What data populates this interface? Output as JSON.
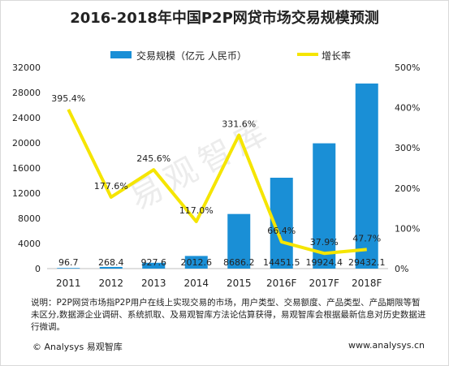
{
  "chart_data": {
    "type": "bar+line",
    "title": "2016-2018年中国P2P网贷市场交易规模预测",
    "categories": [
      "2011",
      "2012",
      "2013",
      "2014",
      "2015",
      "2016F",
      "2017F",
      "2018F"
    ],
    "series": [
      {
        "name": "交易规模（亿元 人民币）",
        "type": "bar",
        "axis": "left",
        "values": [
          96.7,
          268.4,
          927.6,
          2012.6,
          8686.2,
          14451.5,
          19924.4,
          29432.1
        ],
        "labels": [
          "96.7",
          "268.4",
          "927.6",
          "2012.6",
          "8686.2",
          "14451.5",
          "19924.4",
          "29432.1"
        ]
      },
      {
        "name": "增长率",
        "type": "line",
        "axis": "right",
        "values": [
          395.4,
          177.6,
          245.6,
          117.0,
          331.6,
          66.4,
          37.9,
          47.7
        ],
        "labels": [
          "395.4%",
          "177.6%",
          "245.6%",
          "117.0%",
          "331.6%",
          "66.4%",
          "37.9%",
          "47.7%"
        ]
      }
    ],
    "y_left": {
      "ticks": [
        "0",
        "4000",
        "8000",
        "12000",
        "16000",
        "20000",
        "24000",
        "28000",
        "32000"
      ],
      "lim": [
        0,
        32000
      ]
    },
    "y_right": {
      "ticks": [
        "0%",
        "100%",
        "200%",
        "300%",
        "400%",
        "500%"
      ],
      "lim": [
        0,
        500
      ]
    },
    "legend_position": "top",
    "grid": false,
    "colors": {
      "bar": "#1a8fd6",
      "line": "#f5e500"
    }
  },
  "watermark": "易观智库",
  "note": "说明：P2P网贷市场指P2P用户在线上实现交易的市场，用户类型、交易额度、产品类型、产品期限等暂未区分,数据源企业调研、系统抓取、及易观智库方法论估算获得，易观智库会根据最新信息对历史数据进行微调。",
  "footer": {
    "left": "© Analysys 易观智库",
    "right": "www.analysys.cn"
  }
}
